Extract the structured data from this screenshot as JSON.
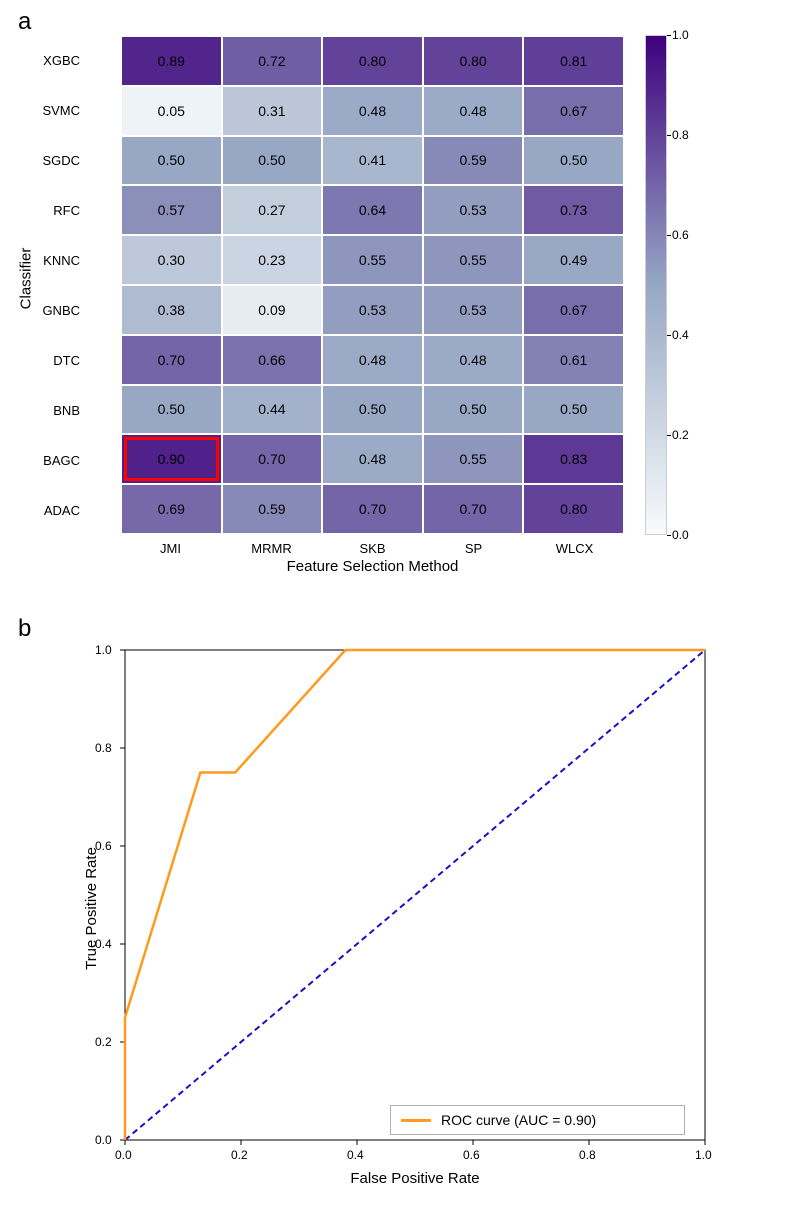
{
  "panel_a": {
    "label": "a",
    "type": "heatmap",
    "x_title": "Feature Selection Method",
    "y_title": "Classifier",
    "x_categories": [
      "JMI",
      "MRMR",
      "SKB",
      "SP",
      "WLCX"
    ],
    "y_categories": [
      "XGBC",
      "SVMC",
      "SGDC",
      "RFC",
      "KNNC",
      "GNBC",
      "DTC",
      "BNB",
      "BAGC",
      "ADAC"
    ],
    "values": [
      [
        0.89,
        0.72,
        0.8,
        0.8,
        0.81
      ],
      [
        0.05,
        0.31,
        0.48,
        0.48,
        0.67
      ],
      [
        0.5,
        0.5,
        0.41,
        0.59,
        0.5
      ],
      [
        0.57,
        0.27,
        0.64,
        0.53,
        0.73
      ],
      [
        0.3,
        0.23,
        0.55,
        0.55,
        0.49
      ],
      [
        0.38,
        0.09,
        0.53,
        0.53,
        0.67
      ],
      [
        0.7,
        0.66,
        0.48,
        0.48,
        0.61
      ],
      [
        0.5,
        0.44,
        0.5,
        0.5,
        0.5
      ],
      [
        0.9,
        0.7,
        0.48,
        0.55,
        0.83
      ],
      [
        0.69,
        0.59,
        0.7,
        0.7,
        0.8
      ]
    ],
    "highlight": {
      "row": 8,
      "col": 0
    },
    "highlight_color": "#ff0000",
    "colorbar": {
      "min": 0.0,
      "max": 1.0,
      "ticks": [
        0.0,
        0.2,
        0.4,
        0.6,
        0.8,
        1.0
      ],
      "low_color": "#f7fbfb",
      "mid_color": "#97a7c4",
      "high_color": "#3f007d"
    },
    "font_size_labels": 13,
    "font_size_values": 14,
    "font_size_axis_title": 15
  },
  "panel_b": {
    "label": "b",
    "type": "line",
    "x_title": "False Positive Rate",
    "y_title": "True Positive Rate",
    "xlim": [
      0.0,
      1.0
    ],
    "ylim": [
      0.0,
      1.0
    ],
    "xticks": [
      0.0,
      0.2,
      0.4,
      0.6,
      0.8,
      1.0
    ],
    "yticks": [
      0.0,
      0.2,
      0.4,
      0.6,
      0.8,
      1.0
    ],
    "roc_curve": {
      "x": [
        0.0,
        0.0,
        0.13,
        0.19,
        0.38,
        1.0
      ],
      "y": [
        0.0,
        0.25,
        0.75,
        0.75,
        1.0,
        1.0
      ],
      "color": "#ff9a1f",
      "linewidth": 2.5
    },
    "diagonal": {
      "x": [
        0.0,
        1.0
      ],
      "y": [
        0.0,
        1.0
      ],
      "color": "#1810c6",
      "linewidth": 2,
      "dash": "6,4"
    },
    "legend_label": "ROC curve (AUC = 0.90)",
    "legend_border_color": "#b0b0b0",
    "plot_border_color": "#000000",
    "background_color": "#ffffff",
    "font_size_tick": 12,
    "font_size_axis_title": 15,
    "font_size_legend": 14
  }
}
